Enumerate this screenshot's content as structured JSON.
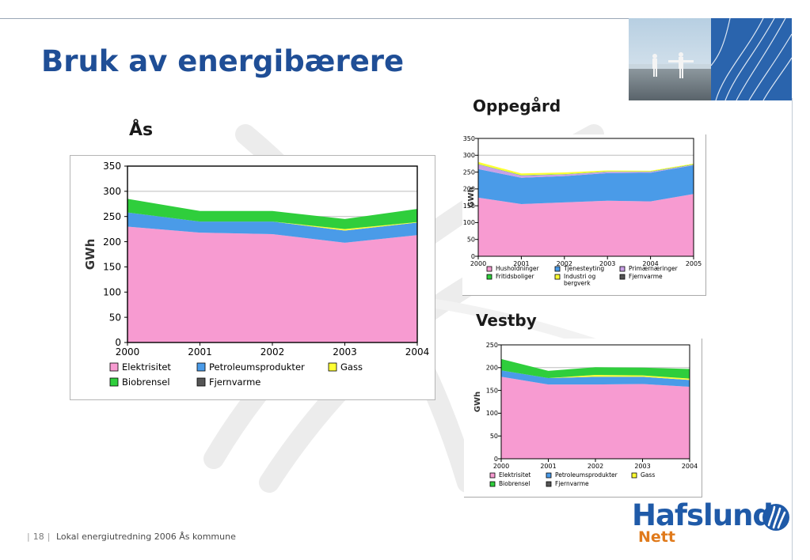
{
  "slide": {
    "title": "Bruk av energibærere",
    "page_number": "18",
    "footer_text": "Lokal energiutredning 2006 Ås kommune"
  },
  "logo": {
    "name": "Hafslund",
    "sub": "Nett"
  },
  "colors": {
    "title": "#1f4e96",
    "pink": "#f79bd1",
    "blue": "#4a9be8",
    "green": "#2fce3c",
    "yellow": "#ffff33",
    "purple": "#c9a0e6",
    "darkgray": "#555555"
  },
  "chart_data": [
    {
      "id": "as",
      "label": "Ås",
      "type": "area",
      "stacked": true,
      "ylabel": "GWh",
      "x": [
        "2000",
        "2001",
        "2002",
        "2003",
        "2004"
      ],
      "ylim": [
        0,
        350
      ],
      "yticks": [
        0,
        50,
        100,
        150,
        200,
        250,
        300,
        350
      ],
      "gridlines": [
        250,
        300
      ],
      "series": [
        {
          "name": "Elektrisitet",
          "color": "#f79bd1",
          "values": [
            230,
            218,
            215,
            198,
            213
          ]
        },
        {
          "name": "Petroleumsprodukter",
          "color": "#4a9be8",
          "values": [
            28,
            22,
            25,
            24,
            25
          ]
        },
        {
          "name": "Gass",
          "color": "#ffff33",
          "values": [
            0,
            0,
            0,
            3,
            1
          ]
        },
        {
          "name": "Biobrensel",
          "color": "#2fce3c",
          "values": [
            27,
            21,
            21,
            20,
            26
          ]
        },
        {
          "name": "Fjernvarme",
          "color": "#555555",
          "values": [
            0,
            0,
            0,
            0,
            0
          ]
        }
      ],
      "legend_rows": [
        [
          "Elektrisitet",
          "Petroleumsprodukter",
          "Gass"
        ],
        [
          "Biobrensel",
          "Fjernvarme"
        ]
      ]
    },
    {
      "id": "oppegard",
      "label": "Oppegård",
      "type": "area",
      "stacked": true,
      "ylabel": "GWh",
      "x": [
        "2000",
        "2001",
        "2002",
        "2003",
        "2004",
        "2005"
      ],
      "ylim": [
        0,
        350
      ],
      "yticks": [
        0,
        50,
        100,
        150,
        200,
        250,
        300,
        350
      ],
      "gridlines": [
        300
      ],
      "series": [
        {
          "name": "Husholdninger",
          "color": "#f79bd1",
          "values": [
            174,
            155,
            160,
            165,
            163,
            185
          ]
        },
        {
          "name": "Tjenesteyting",
          "color": "#4a9be8",
          "values": [
            85,
            78,
            78,
            82,
            85,
            85
          ]
        },
        {
          "name": "Primærnæringer",
          "color": "#c9a0e6",
          "values": [
            14,
            7,
            5,
            4,
            3,
            2
          ]
        },
        {
          "name": "Fritidsboliger",
          "color": "#2fce3c",
          "values": [
            1,
            1,
            1,
            1,
            1,
            1
          ]
        },
        {
          "name": "Industri og bergverk",
          "color": "#ffff33",
          "values": [
            6,
            5,
            5,
            3,
            2,
            2
          ]
        },
        {
          "name": "Fjernvarme",
          "color": "#555555",
          "values": [
            0,
            0,
            0,
            0,
            0,
            0
          ]
        }
      ],
      "legend_rows": [
        [
          "Husholdninger",
          "Tjenesteyting",
          "Primærnæringer"
        ],
        [
          "Fritidsboliger",
          "Industri og bergverk",
          "Fjernvarme"
        ]
      ]
    },
    {
      "id": "vestby",
      "label": "Vestby",
      "type": "area",
      "stacked": true,
      "ylabel": "GWh",
      "x": [
        "2000",
        "2001",
        "2002",
        "2003",
        "2004"
      ],
      "ylim": [
        0,
        250
      ],
      "yticks": [
        0,
        50,
        100,
        150,
        200,
        250
      ],
      "gridlines": [
        200
      ],
      "series": [
        {
          "name": "Elektrisitet",
          "color": "#f79bd1",
          "values": [
            180,
            163,
            163,
            164,
            158
          ]
        },
        {
          "name": "Petroleumsprodukter",
          "color": "#4a9be8",
          "values": [
            14,
            14,
            17,
            16,
            15
          ]
        },
        {
          "name": "Gass",
          "color": "#ffff33",
          "values": [
            0,
            0,
            4,
            3,
            3
          ]
        },
        {
          "name": "Biobrensel",
          "color": "#2fce3c",
          "values": [
            25,
            16,
            17,
            17,
            21
          ]
        },
        {
          "name": "Fjernvarme",
          "color": "#555555",
          "values": [
            0,
            0,
            0,
            0,
            0
          ]
        }
      ],
      "legend_rows": [
        [
          "Elektrisitet",
          "Petroleumsprodukter",
          "Gass"
        ],
        [
          "Biobrensel",
          "Fjernvarme"
        ]
      ]
    }
  ]
}
